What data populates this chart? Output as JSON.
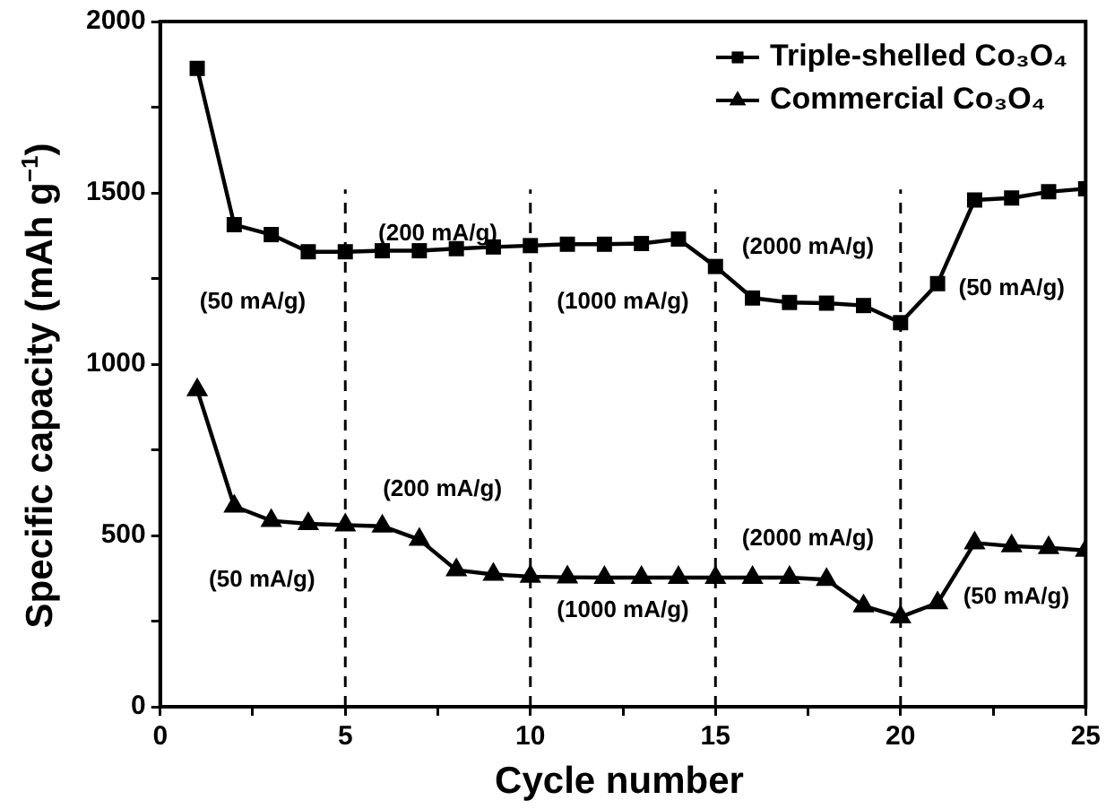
{
  "chart_data": {
    "type": "line",
    "xlabel": "Cycle number",
    "ylabel": "Specific capacity (mAh g$^{−1}$)",
    "x": [
      1,
      2,
      3,
      4,
      5,
      6,
      7,
      8,
      9,
      10,
      11,
      12,
      13,
      14,
      15,
      16,
      17,
      18,
      19,
      20,
      21,
      22,
      23,
      24,
      25
    ],
    "series": [
      {
        "name": "Triple-shelled Co₃O₄",
        "color": "#000000",
        "marker": "square",
        "values": [
          1863,
          1407,
          1378,
          1328,
          1328,
          1331,
          1331,
          1337,
          1342,
          1346,
          1350,
          1350,
          1352,
          1365,
          1285,
          1193,
          1180,
          1178,
          1171,
          1121,
          1235,
          1479,
          1485,
          1503,
          1512
        ]
      },
      {
        "name": "Commercial Co₃O₄",
        "color": "#000000",
        "marker": "triangle",
        "values": [
          925,
          585,
          543,
          534,
          530,
          527,
          488,
          399,
          386,
          380,
          378,
          377,
          377,
          377,
          377,
          377,
          377,
          371,
          294,
          262,
          303,
          478,
          469,
          464,
          456
        ]
      }
    ],
    "xlim": [
      0,
      25
    ],
    "xticks": [
      0,
      {
        "value": 2.5,
        "label": null
      },
      5,
      {
        "value": 7.5,
        "label": null
      },
      10,
      {
        "value": 12.5,
        "label": null
      },
      15,
      {
        "value": 17.5,
        "label": null
      },
      20,
      {
        "value": 22.5,
        "label": null
      },
      25
    ],
    "ylim": [
      0,
      2000
    ],
    "yticks": [
      0,
      {
        "value": 250,
        "label": null
      },
      500,
      {
        "value": 750,
        "label": null
      },
      1000,
      {
        "value": 1250,
        "label": null
      },
      1500,
      {
        "value": 1750,
        "label": null
      },
      2000
    ],
    "ref_lines": [
      {
        "axis": "x",
        "value": 5,
        "line_style": "dashed"
      },
      {
        "axis": "x",
        "value": 10,
        "line_style": "dashed"
      },
      {
        "axis": "x",
        "value": 15,
        "line_style": "dashed"
      },
      {
        "axis": "x",
        "value": 20,
        "line_style": "dashed"
      }
    ],
    "annotations": [
      "(50 mA/g)",
      "(200 mA/g)",
      "(1000 mA/g)",
      "(2000 mA/g)",
      "(50 mA/g)",
      "(50 mA/g)",
      "(200 mA/g)",
      "(1000 mA/g)",
      "(2000 mA/g)",
      "(50 mA/g)"
    ],
    "grid": false,
    "legend": "top right"
  }
}
